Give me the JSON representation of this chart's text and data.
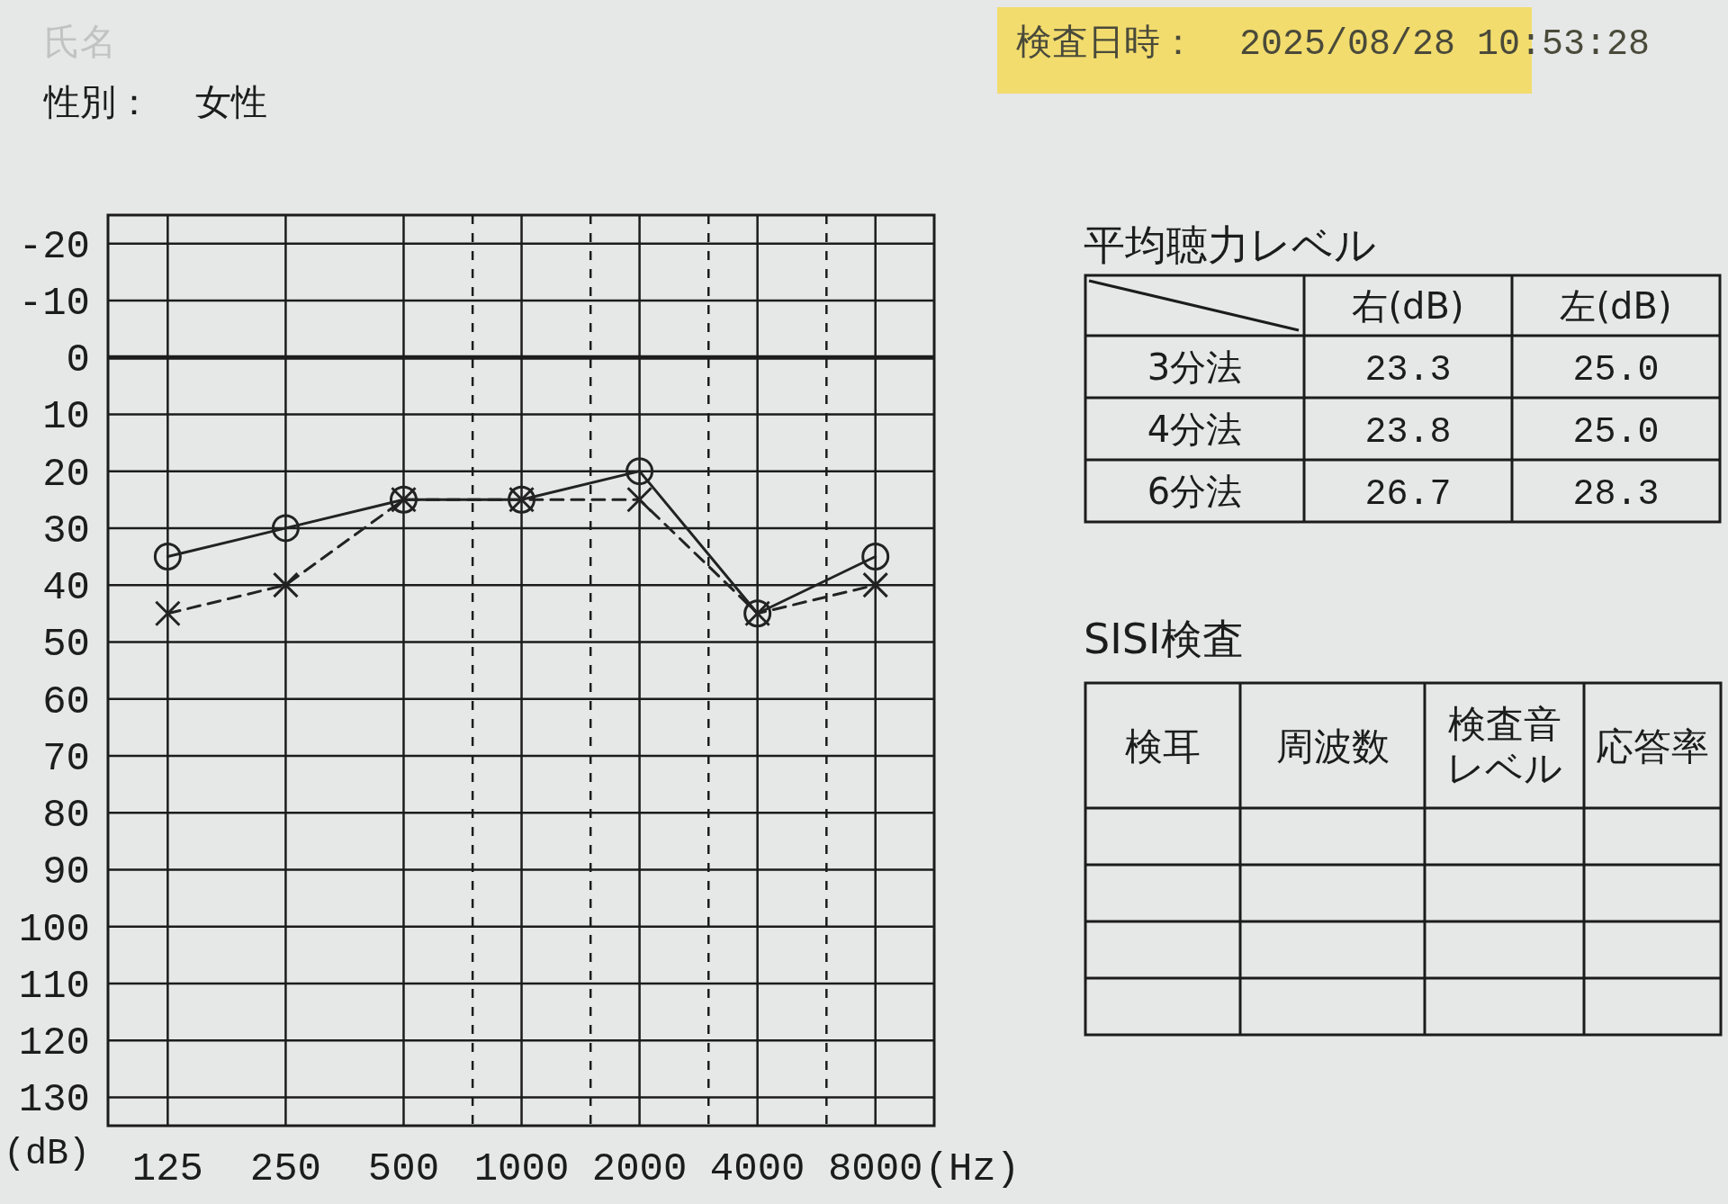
{
  "chart_data": [
    {
      "type": "line",
      "annotations": [
        "氏名",
        "性別：  女性",
        "検査日時：  2025/08/28 10:53:28"
      ],
      "xlabel": "(Hz)",
      "ylabel": "(dB)",
      "x": [
        125,
        250,
        500,
        1000,
        2000,
        4000,
        8000
      ],
      "series": [
        {
          "color": "#222222",
          "values": [
            35,
            30,
            25,
            25,
            20,
            45,
            35
          ],
          "marker": "circle",
          "line_style": "solid"
        },
        {
          "color": "#222222",
          "values": [
            45,
            40,
            25,
            25,
            25,
            45,
            40
          ],
          "marker": "cross",
          "line_style": "dashed"
        }
      ],
      "log": "x",
      "xlim": [
        88,
        11300
      ],
      "xticks": [
        125,
        250,
        500,
        {
          "value": 750,
          "label": null
        },
        1000,
        {
          "value": 1500,
          "label": null
        },
        2000,
        {
          "value": 3000,
          "label": null
        },
        4000,
        {
          "value": 6000,
          "label": null
        },
        8000
      ],
      "ylim": [
        135,
        -25
      ],
      "yticks": [
        -20,
        -10,
        0,
        10,
        20,
        30,
        40,
        50,
        60,
        70,
        80,
        90,
        100,
        110,
        120,
        130
      ],
      "grid": true,
      "ref_lines": [
        {
          "axis": "y",
          "value": 0
        }
      ]
    },
    {
      "type": "other",
      "title": "平均聴力レベル",
      "categories": [
        "右(dB)",
        "左(dB)"
      ],
      "y_categories": [
        "3分法",
        "4分法",
        "6分法"
      ],
      "cell_labels": [
        [
          "23.3",
          "25.0"
        ],
        [
          "23.8",
          "25.0"
        ],
        [
          "26.7",
          "28.3"
        ]
      ]
    },
    {
      "type": "other",
      "title": "SISI検査",
      "categories": [
        "検耳",
        "周波数",
        "検査音レベル",
        "応答率"
      ],
      "cells": [
        [
          null,
          null,
          null,
          null
        ],
        [
          null,
          null,
          null,
          null
        ],
        [
          null,
          null,
          null,
          null
        ],
        [
          null,
          null,
          null,
          null
        ]
      ]
    }
  ]
}
